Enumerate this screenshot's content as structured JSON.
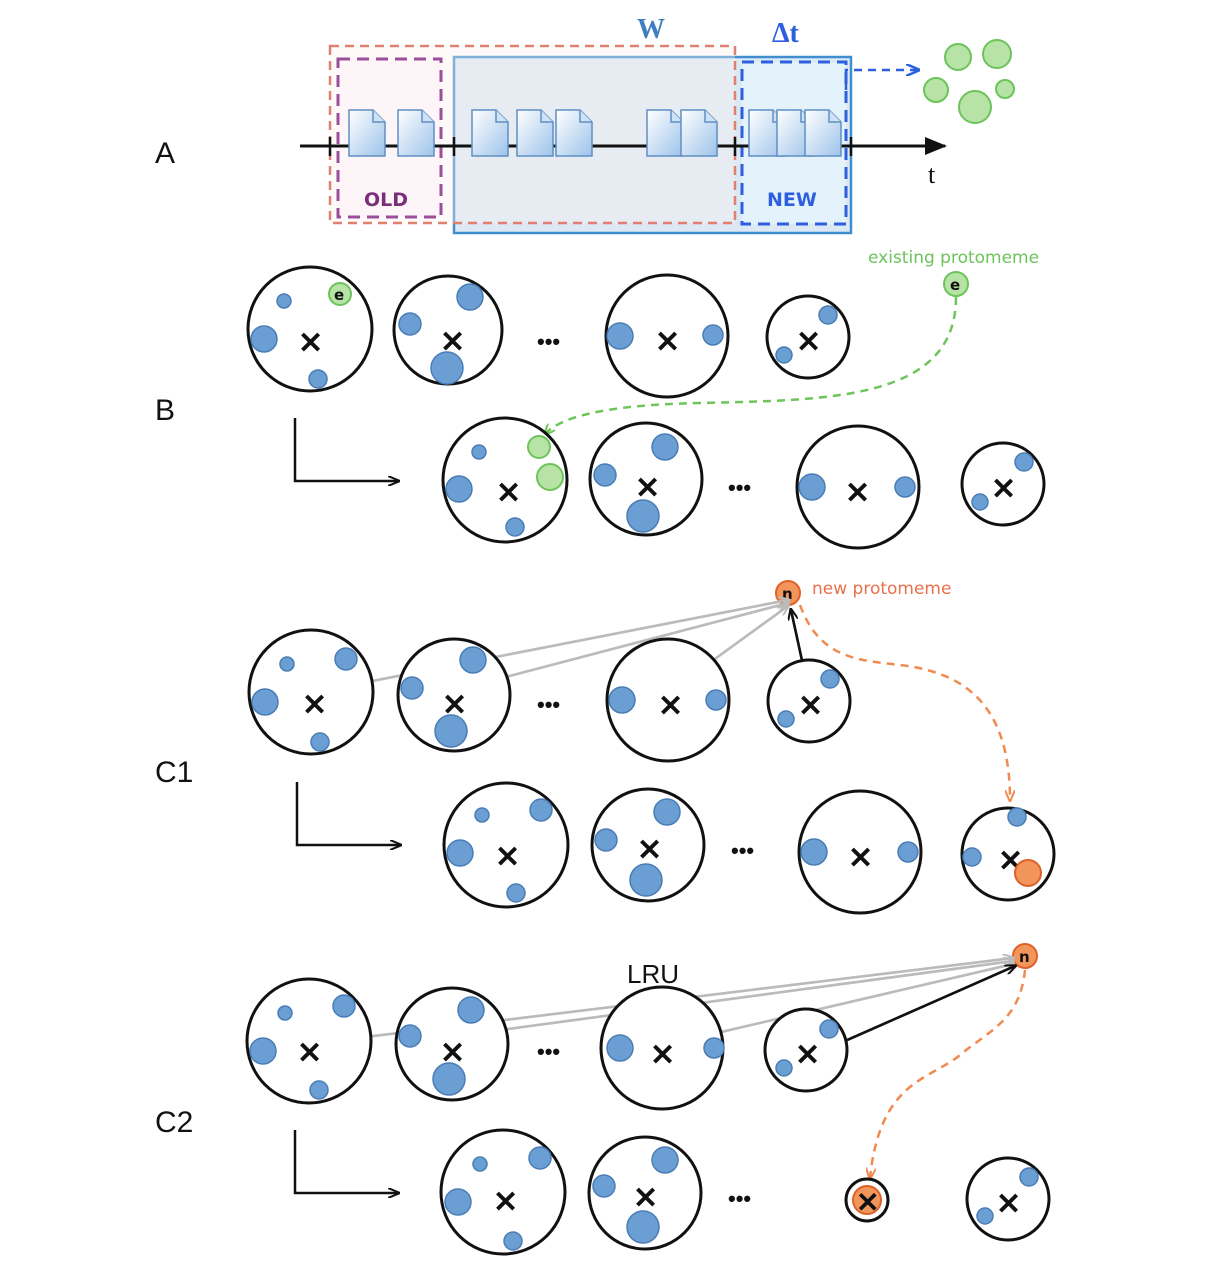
{
  "panels": {
    "a": "A",
    "b": "B",
    "c1": "C1",
    "c2": "C2"
  },
  "timeline": {
    "axis_label": "t",
    "window_label": "W",
    "delta_label": "Δt",
    "old_label": "OLD",
    "new_label": "NEW"
  },
  "annotations": {
    "existing": "existing protomeme",
    "existing_letter": "e",
    "new": "new protomeme",
    "new_letter": "n",
    "lru": "LRU",
    "ellipsis": "•••"
  },
  "colors": {
    "blue_fill": "#6b9fd3",
    "blue_stroke": "#4a7db5",
    "green_fill": "#b7e3a6",
    "green_stroke": "#6cc45a",
    "orange_fill": "#f2955a",
    "orange_stroke": "#e0602a",
    "old_box": "#9b4f9b",
    "new_box": "#2d5fe0",
    "window_box": "#3f8fd0",
    "outer_box": "#e08070",
    "grey_arrow": "#bbbbbb"
  }
}
